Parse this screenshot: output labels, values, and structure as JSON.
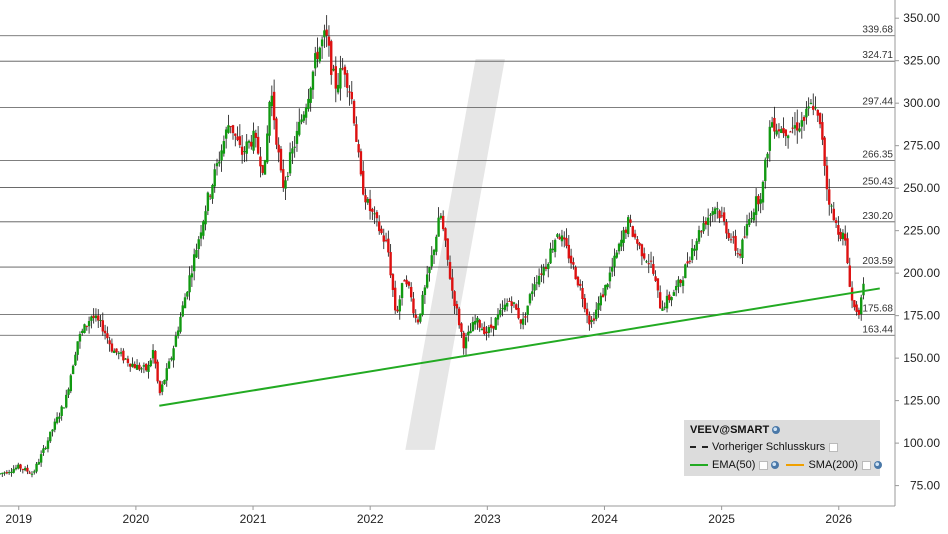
{
  "chart_data": {
    "type": "candlestick",
    "title": "",
    "xlabel": "",
    "ylabel": "",
    "x_ticks": [
      "2019",
      "2020",
      "2021",
      "2022",
      "2023",
      "2024",
      "2025",
      "2026"
    ],
    "y_ticks": [
      "75.00",
      "100.00",
      "125.00",
      "150.00",
      "175.00",
      "200.00",
      "225.00",
      "250.00",
      "275.00",
      "300.00",
      "325.00",
      "350.00"
    ],
    "y_tick_values": [
      75,
      100,
      125,
      150,
      175,
      200,
      225,
      250,
      275,
      300,
      325,
      350
    ],
    "ylim": [
      63,
      356
    ],
    "xlim": [
      2018.84,
      2026.48
    ],
    "grid": true,
    "horizontal_levels": [
      339.68,
      324.71,
      297.44,
      266.35,
      250.43,
      230.2,
      203.59,
      175.68,
      163.44
    ],
    "horizontal_level_labels": [
      "339.68",
      "324.71",
      "297.44",
      "266.35",
      "250.43",
      "230.20",
      "203.59",
      "175.68",
      "163.44"
    ],
    "trendline": {
      "x": [
        2020.2,
        2026.35
      ],
      "y": [
        122,
        191
      ]
    },
    "up_color": "#119911",
    "down_color": "#dd1111",
    "watermark_color": "#e6e6e6",
    "price_path": [
      [
        2018.84,
        82
      ],
      [
        2019.0,
        86
      ],
      [
        2019.12,
        82
      ],
      [
        2019.2,
        94
      ],
      [
        2019.3,
        110
      ],
      [
        2019.4,
        125
      ],
      [
        2019.5,
        160
      ],
      [
        2019.62,
        175
      ],
      [
        2019.72,
        168
      ],
      [
        2019.8,
        155
      ],
      [
        2019.9,
        150
      ],
      [
        2020.0,
        145
      ],
      [
        2020.1,
        143
      ],
      [
        2020.15,
        155
      ],
      [
        2020.2,
        128
      ],
      [
        2020.3,
        150
      ],
      [
        2020.4,
        180
      ],
      [
        2020.5,
        210
      ],
      [
        2020.6,
        240
      ],
      [
        2020.7,
        265
      ],
      [
        2020.8,
        290
      ],
      [
        2020.9,
        270
      ],
      [
        2021.0,
        280
      ],
      [
        2021.1,
        260
      ],
      [
        2021.15,
        310
      ],
      [
        2021.25,
        250
      ],
      [
        2021.35,
        275
      ],
      [
        2021.45,
        300
      ],
      [
        2021.55,
        330
      ],
      [
        2021.62,
        340
      ],
      [
        2021.7,
        310
      ],
      [
        2021.78,
        322
      ],
      [
        2021.85,
        300
      ],
      [
        2021.92,
        255
      ],
      [
        2021.98,
        240
      ],
      [
        2022.05,
        230
      ],
      [
        2022.15,
        215
      ],
      [
        2022.22,
        175
      ],
      [
        2022.3,
        200
      ],
      [
        2022.4,
        170
      ],
      [
        2022.5,
        200
      ],
      [
        2022.6,
        235
      ],
      [
        2022.7,
        190
      ],
      [
        2022.8,
        158
      ],
      [
        2022.9,
        172
      ],
      [
        2023.0,
        165
      ],
      [
        2023.1,
        175
      ],
      [
        2023.2,
        185
      ],
      [
        2023.3,
        170
      ],
      [
        2023.4,
        195
      ],
      [
        2023.5,
        205
      ],
      [
        2023.6,
        225
      ],
      [
        2023.7,
        210
      ],
      [
        2023.8,
        190
      ],
      [
        2023.88,
        170
      ],
      [
        2024.0,
        190
      ],
      [
        2024.1,
        210
      ],
      [
        2024.2,
        230
      ],
      [
        2024.3,
        215
      ],
      [
        2024.4,
        205
      ],
      [
        2024.48,
        180
      ],
      [
        2024.55,
        185
      ],
      [
        2024.65,
        195
      ],
      [
        2024.75,
        215
      ],
      [
        2024.85,
        230
      ],
      [
        2024.95,
        240
      ],
      [
        2025.05,
        225
      ],
      [
        2025.15,
        210
      ],
      [
        2025.25,
        235
      ],
      [
        2025.35,
        250
      ],
      [
        2025.42,
        290
      ],
      [
        2025.5,
        285
      ],
      [
        2025.6,
        285
      ],
      [
        2025.7,
        290
      ],
      [
        2025.78,
        300
      ],
      [
        2025.86,
        280
      ],
      [
        2025.9,
        250
      ],
      [
        2025.96,
        230
      ],
      [
        2026.05,
        220
      ],
      [
        2026.12,
        180
      ],
      [
        2026.18,
        178
      ],
      [
        2026.22,
        195
      ]
    ]
  },
  "right_axis_labels": [
    "339.68",
    "324.71",
    "297.44",
    "266.35",
    "250.43",
    "230.20",
    "203.59",
    "175.68",
    "163.44"
  ],
  "legend": {
    "title": "VEEV@SMART",
    "previous_close_label": "Vorheriger Schlusskurs",
    "ema_label": "EMA(50)",
    "sma_label": "SMA(200)"
  }
}
